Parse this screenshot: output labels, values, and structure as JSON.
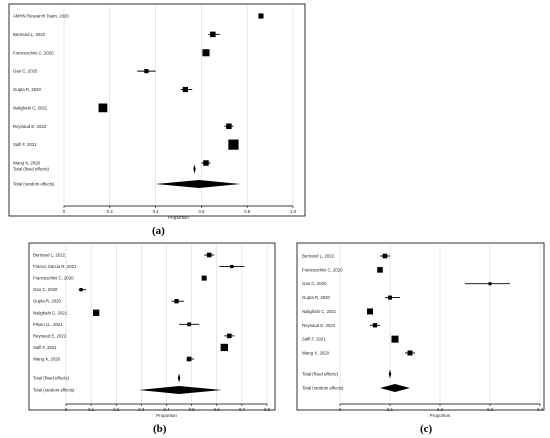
{
  "chart_data": [
    {
      "type": "forest",
      "panel_label": "(a)",
      "xlabel": "Proportion",
      "xlim": [
        0,
        1
      ],
      "xticks": [
        "0",
        "0.2",
        "0.4",
        "0.6",
        "0.8",
        "1.0"
      ],
      "studies": [
        {
          "label": "AMHN Research Team, 2020",
          "est": 0.86,
          "lo": 0.86,
          "hi": 0.86,
          "weight": 4.3
        },
        {
          "label": "Bertrand L, 2022",
          "est": 0.65,
          "lo": 0.63,
          "hi": 0.68,
          "weight": 4.6
        },
        {
          "label": "Franceschini C, 2020",
          "est": 0.62,
          "lo": 0.62,
          "hi": 0.62,
          "weight": 5.9
        },
        {
          "label": "Gao C, 2020",
          "est": 0.36,
          "lo": 0.32,
          "hi": 0.4,
          "weight": 3.5
        },
        {
          "label": "Gupta R, 2020",
          "est": 0.53,
          "lo": 0.51,
          "hi": 0.56,
          "weight": 4.4
        },
        {
          "label": "Nalighahi C, 2021",
          "est": 0.17,
          "lo": 0.17,
          "hi": 0.17,
          "weight": 7.3
        },
        {
          "label": "Reynaud E, 2022",
          "est": 0.72,
          "lo": 0.7,
          "hi": 0.74,
          "weight": 4.6
        },
        {
          "label": "Salfi F, 2021",
          "est": 0.74,
          "lo": 0.74,
          "hi": 0.74,
          "weight": 8.5
        },
        {
          "label": "Wang X, 2020",
          "est": 0.62,
          "lo": 0.6,
          "hi": 0.64,
          "weight": 4.6
        }
      ],
      "pooled": [
        {
          "label": "Total (fixed effects)",
          "est": 0.57,
          "lo": 0.567,
          "hi": 0.573
        },
        {
          "label": "Total (random effects)",
          "est": 0.59,
          "lo": 0.4,
          "hi": 0.77
        }
      ]
    },
    {
      "type": "forest",
      "panel_label": "(b)",
      "xlabel": "Proportion",
      "xlim": [
        0,
        0.8
      ],
      "xticks": [
        "0",
        "0.1",
        "0.2",
        "0.3",
        "0.4",
        "0.5",
        "0.6",
        "0.7",
        "0.8"
      ],
      "studies": [
        {
          "label": "Bertrand L, 2022",
          "est": 0.57,
          "lo": 0.55,
          "hi": 0.59,
          "weight": 4.6
        },
        {
          "label": "Franco Garcia R, 2021",
          "est": 0.66,
          "lo": 0.61,
          "hi": 0.71,
          "weight": 3.3
        },
        {
          "label": "Franceschini C, 2020",
          "est": 0.55,
          "lo": 0.55,
          "hi": 0.55,
          "weight": 5.0
        },
        {
          "label": "Gao C, 2020",
          "est": 0.06,
          "lo": 0.05,
          "hi": 0.08,
          "weight": 3.3
        },
        {
          "label": "Gupta R, 2020",
          "est": 0.44,
          "lo": 0.42,
          "hi": 0.47,
          "weight": 4.3
        },
        {
          "label": "Nalighahi C, 2021",
          "est": 0.12,
          "lo": 0.12,
          "hi": 0.12,
          "weight": 6.3
        },
        {
          "label": "Pilsen LL, 2021",
          "est": 0.49,
          "lo": 0.45,
          "hi": 0.53,
          "weight": 3.8
        },
        {
          "label": "Reynaud E, 2022",
          "est": 0.65,
          "lo": 0.63,
          "hi": 0.67,
          "weight": 4.6
        },
        {
          "label": "Salfi F, 2021",
          "est": 0.63,
          "lo": 0.63,
          "hi": 0.63,
          "weight": 7.3
        },
        {
          "label": "Wang X, 2020",
          "est": 0.49,
          "lo": 0.48,
          "hi": 0.51,
          "weight": 4.6
        }
      ],
      "pooled": [
        {
          "label": "Total (fixed effects)",
          "est": 0.45,
          "lo": 0.447,
          "hi": 0.453
        },
        {
          "label": "Total (random effects)",
          "est": 0.45,
          "lo": 0.29,
          "hi": 0.62
        }
      ]
    },
    {
      "type": "forest",
      "panel_label": "(c)",
      "xlabel": "Proportion",
      "xlim": [
        0,
        0.4
      ],
      "xticks": [
        "0",
        "0.1",
        "0.2",
        "0.3",
        "0.4"
      ],
      "studies": [
        {
          "label": "Bertrand L, 2022",
          "est": 0.09,
          "lo": 0.08,
          "hi": 0.1,
          "weight": 4.6
        },
        {
          "label": "Franceschini C, 2020",
          "est": 0.08,
          "lo": 0.08,
          "hi": 0.08,
          "weight": 5.6
        },
        {
          "label": "Gao C, 2020",
          "est": 0.3,
          "lo": 0.25,
          "hi": 0.34,
          "weight": 3.0
        },
        {
          "label": "Gupta R, 2020",
          "est": 0.1,
          "lo": 0.09,
          "hi": 0.12,
          "weight": 4.0
        },
        {
          "label": "Nalighahi C, 2021",
          "est": 0.06,
          "lo": 0.06,
          "hi": 0.06,
          "weight": 6.0
        },
        {
          "label": "Reynaud E, 2022",
          "est": 0.07,
          "lo": 0.06,
          "hi": 0.08,
          "weight": 4.3
        },
        {
          "label": "Salfi F, 2021",
          "est": 0.11,
          "lo": 0.11,
          "hi": 0.11,
          "weight": 7.0
        },
        {
          "label": "Wang X, 2020",
          "est": 0.14,
          "lo": 0.13,
          "hi": 0.15,
          "weight": 5.0
        }
      ],
      "pooled": [
        {
          "label": "Total (fixed effects)",
          "est": 0.1,
          "lo": 0.099,
          "hi": 0.101
        },
        {
          "label": "Total (random effects)",
          "est": 0.11,
          "lo": 0.08,
          "hi": 0.14
        }
      ]
    }
  ]
}
